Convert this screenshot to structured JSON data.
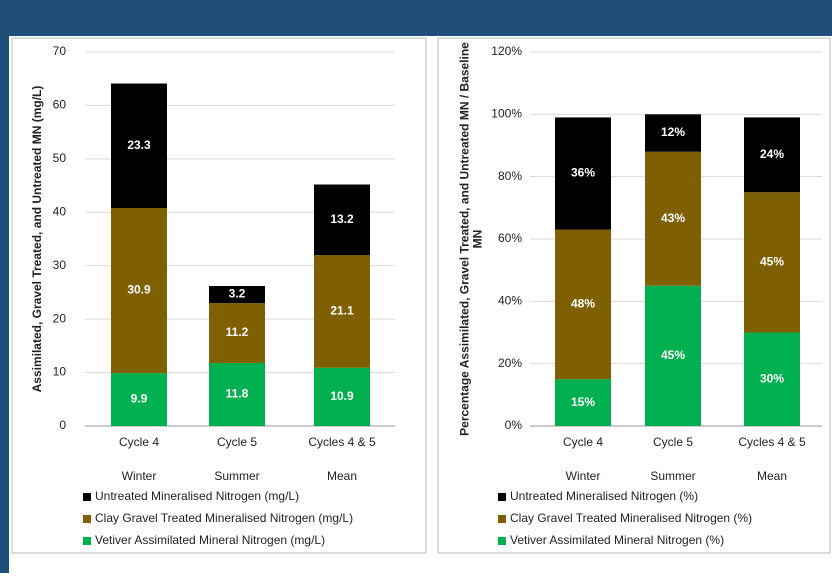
{
  "chart_data": [
    {
      "type": "stacked_bar",
      "y_label": [
        "Assimilated, Gravel Treated, and Untreated MN (mg/L)"
      ],
      "categories": [
        "Cycle 4",
        "Cycle 5",
        "Cycles 4 & 5"
      ],
      "category_subtitles": [
        "Winter",
        "Summer",
        "Mean"
      ],
      "ylim": [
        0,
        70
      ],
      "yticks": [
        0,
        10,
        20,
        30,
        40,
        50,
        60,
        70
      ],
      "grid": true,
      "series": [
        {
          "name": "Vetiver Assimilated Mineral Nitrogen (mg/L)",
          "color": "#00b050",
          "values": [
            9.9,
            11.8,
            10.9
          ]
        },
        {
          "name": "Clay Gravel Treated Mineralised Nitrogen (mg/L)",
          "color": "#7f6000",
          "values": [
            30.9,
            11.2,
            21.1
          ]
        },
        {
          "name": "Untreated Mineralised Nitrogen (mg/L)",
          "color": "#000000",
          "values": [
            23.3,
            3.2,
            13.2
          ]
        }
      ]
    },
    {
      "type": "stacked_bar",
      "y_label": [
        "Percentage Assimilated, Gravel Treated, and Untreated MN / Baseline",
        "MN"
      ],
      "categories": [
        "Cycle 4",
        "Cycle 5",
        "Cycles 4 & 5"
      ],
      "category_subtitles": [
        "Winter",
        "Summer",
        "Mean"
      ],
      "ylim": [
        0,
        120
      ],
      "yticks": [
        {
          "value": 0,
          "label": "0%"
        },
        {
          "value": 20,
          "label": "20%"
        },
        {
          "value": 40,
          "label": "40%"
        },
        {
          "value": 60,
          "label": "60%"
        },
        {
          "value": 80,
          "label": "80%"
        },
        {
          "value": 100,
          "label": "100%"
        },
        {
          "value": 120,
          "label": "120%"
        }
      ],
      "grid": true,
      "series": [
        {
          "name": "Vetiver Assimilated Mineral Nitrogen (%)",
          "color": "#00b050",
          "values": [
            15,
            45,
            30
          ],
          "value_labels": [
            "15%",
            "45%",
            "30%"
          ]
        },
        {
          "name": "Clay Gravel Treated Mineralised Nitrogen (%)",
          "color": "#7f6000",
          "values": [
            48,
            43,
            45
          ],
          "value_labels": [
            "48%",
            "43%",
            "45%"
          ]
        },
        {
          "name": "Untreated Mineralised Nitrogen (%)",
          "color": "#000000",
          "values": [
            36,
            12,
            24
          ],
          "value_labels": [
            "36%",
            "12%",
            "24%"
          ]
        }
      ]
    }
  ]
}
